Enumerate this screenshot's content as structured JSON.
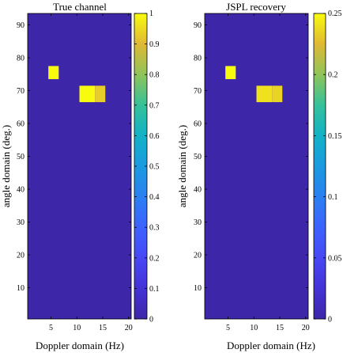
{
  "chart_data": [
    {
      "type": "heatmap",
      "title": "True channel",
      "xlabel": "Doppler domain (Hz)",
      "ylabel": "angle domain (deg.)",
      "xlim": [
        0.5,
        20.5
      ],
      "ylim": [
        0.5,
        93.5
      ],
      "xticks": [
        5,
        10,
        15,
        20
      ],
      "yticks": [
        10,
        20,
        30,
        40,
        50,
        60,
        70,
        80,
        90
      ],
      "background_value": 0,
      "colorbar": {
        "min": 0,
        "max": 1,
        "ticks": [
          0,
          0.1,
          0.2,
          0.3,
          0.4,
          0.5,
          0.6,
          0.7,
          0.8,
          0.9,
          1
        ]
      },
      "cells": [
        {
          "x": [
            4.5,
            6.5
          ],
          "y": [
            73.5,
            77.5
          ],
          "value": 1
        },
        {
          "x": [
            10.5,
            13.5
          ],
          "y": [
            66.5,
            71.5
          ],
          "value": 1
        },
        {
          "x": [
            13.5,
            15.5
          ],
          "y": [
            66.5,
            71.5
          ],
          "value": 0.93
        }
      ]
    },
    {
      "type": "heatmap",
      "title": "JSPL recovery",
      "xlabel": "Doppler domain (Hz)",
      "ylabel": "angle domain (deg.)",
      "xlim": [
        0.5,
        20.5
      ],
      "ylim": [
        0.5,
        93.5
      ],
      "xticks": [
        5,
        10,
        15,
        20
      ],
      "yticks": [
        10,
        20,
        30,
        40,
        50,
        60,
        70,
        80,
        90
      ],
      "background_value": 0,
      "colorbar": {
        "min": 0,
        "max": 0.25,
        "ticks": [
          0,
          0.05,
          0.1,
          0.15,
          0.2,
          0.25
        ]
      },
      "cells": [
        {
          "x": [
            4.5,
            6.5
          ],
          "y": [
            73.5,
            77.5
          ],
          "value": 0.25
        },
        {
          "x": [
            10.5,
            13.5
          ],
          "y": [
            66.5,
            71.5
          ],
          "value": 0.24
        },
        {
          "x": [
            13.5,
            15.5
          ],
          "y": [
            66.5,
            71.5
          ],
          "value": 0.235
        }
      ]
    }
  ],
  "colors": {
    "parula_low": "#3e26a8",
    "parula_high": "#f9fb0e"
  }
}
